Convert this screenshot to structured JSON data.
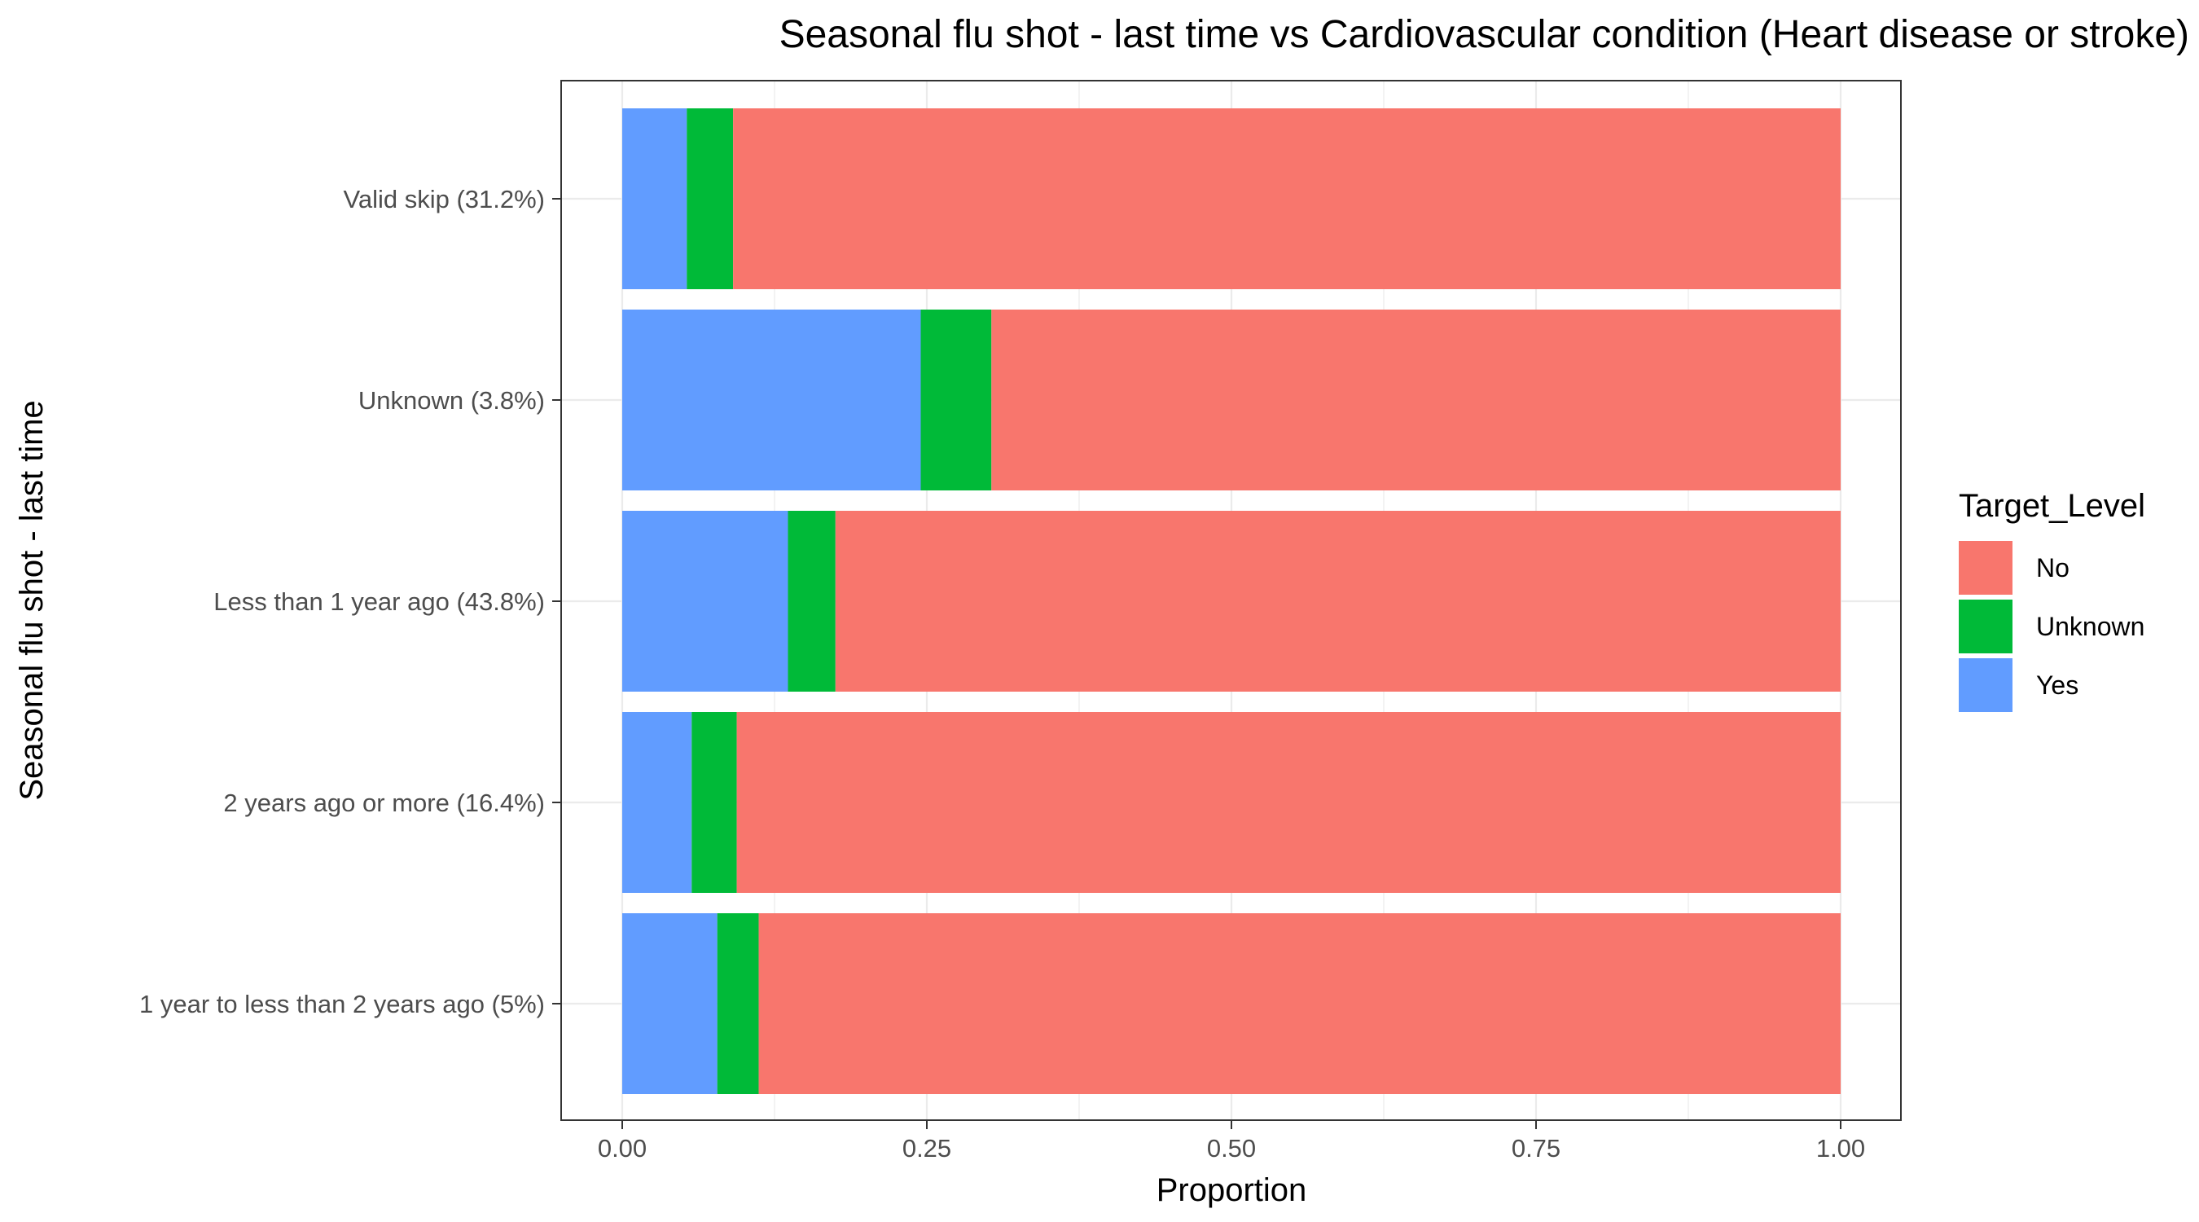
{
  "chart_data": {
    "type": "bar",
    "orientation": "horizontal",
    "stacked": true,
    "title": "Seasonal flu shot - last time vs Cardiovascular condition (Heart disease or stroke)",
    "xlabel": "Proportion",
    "ylabel": "Seasonal flu shot - last time",
    "xlim": [
      0,
      1
    ],
    "x_ticks": [
      "0.00",
      "0.25",
      "0.50",
      "0.75",
      "1.00"
    ],
    "x_tick_values": [
      0,
      0.25,
      0.5,
      0.75,
      1.0
    ],
    "grid": true,
    "categories": [
      "Valid skip (31.2%)",
      "Unknown (3.8%)",
      "Less than 1 year ago (43.8%)",
      "2 years ago or more (16.4%)",
      "1 year to less than 2 years ago (5%)"
    ],
    "stack_order": [
      "Yes",
      "Unknown",
      "No"
    ],
    "series": [
      {
        "name": "No",
        "color": "#F8766D",
        "values": [
          0.909,
          0.697,
          0.825,
          0.906,
          0.888
        ]
      },
      {
        "name": "Unknown",
        "color": "#00BA38",
        "values": [
          0.038,
          0.058,
          0.039,
          0.037,
          0.034
        ]
      },
      {
        "name": "Yes",
        "color": "#619CFF",
        "values": [
          0.053,
          0.245,
          0.136,
          0.057,
          0.078
        ]
      }
    ],
    "legend": {
      "title": "Target_Level",
      "position": "right",
      "items": [
        "No",
        "Unknown",
        "Yes"
      ]
    }
  }
}
